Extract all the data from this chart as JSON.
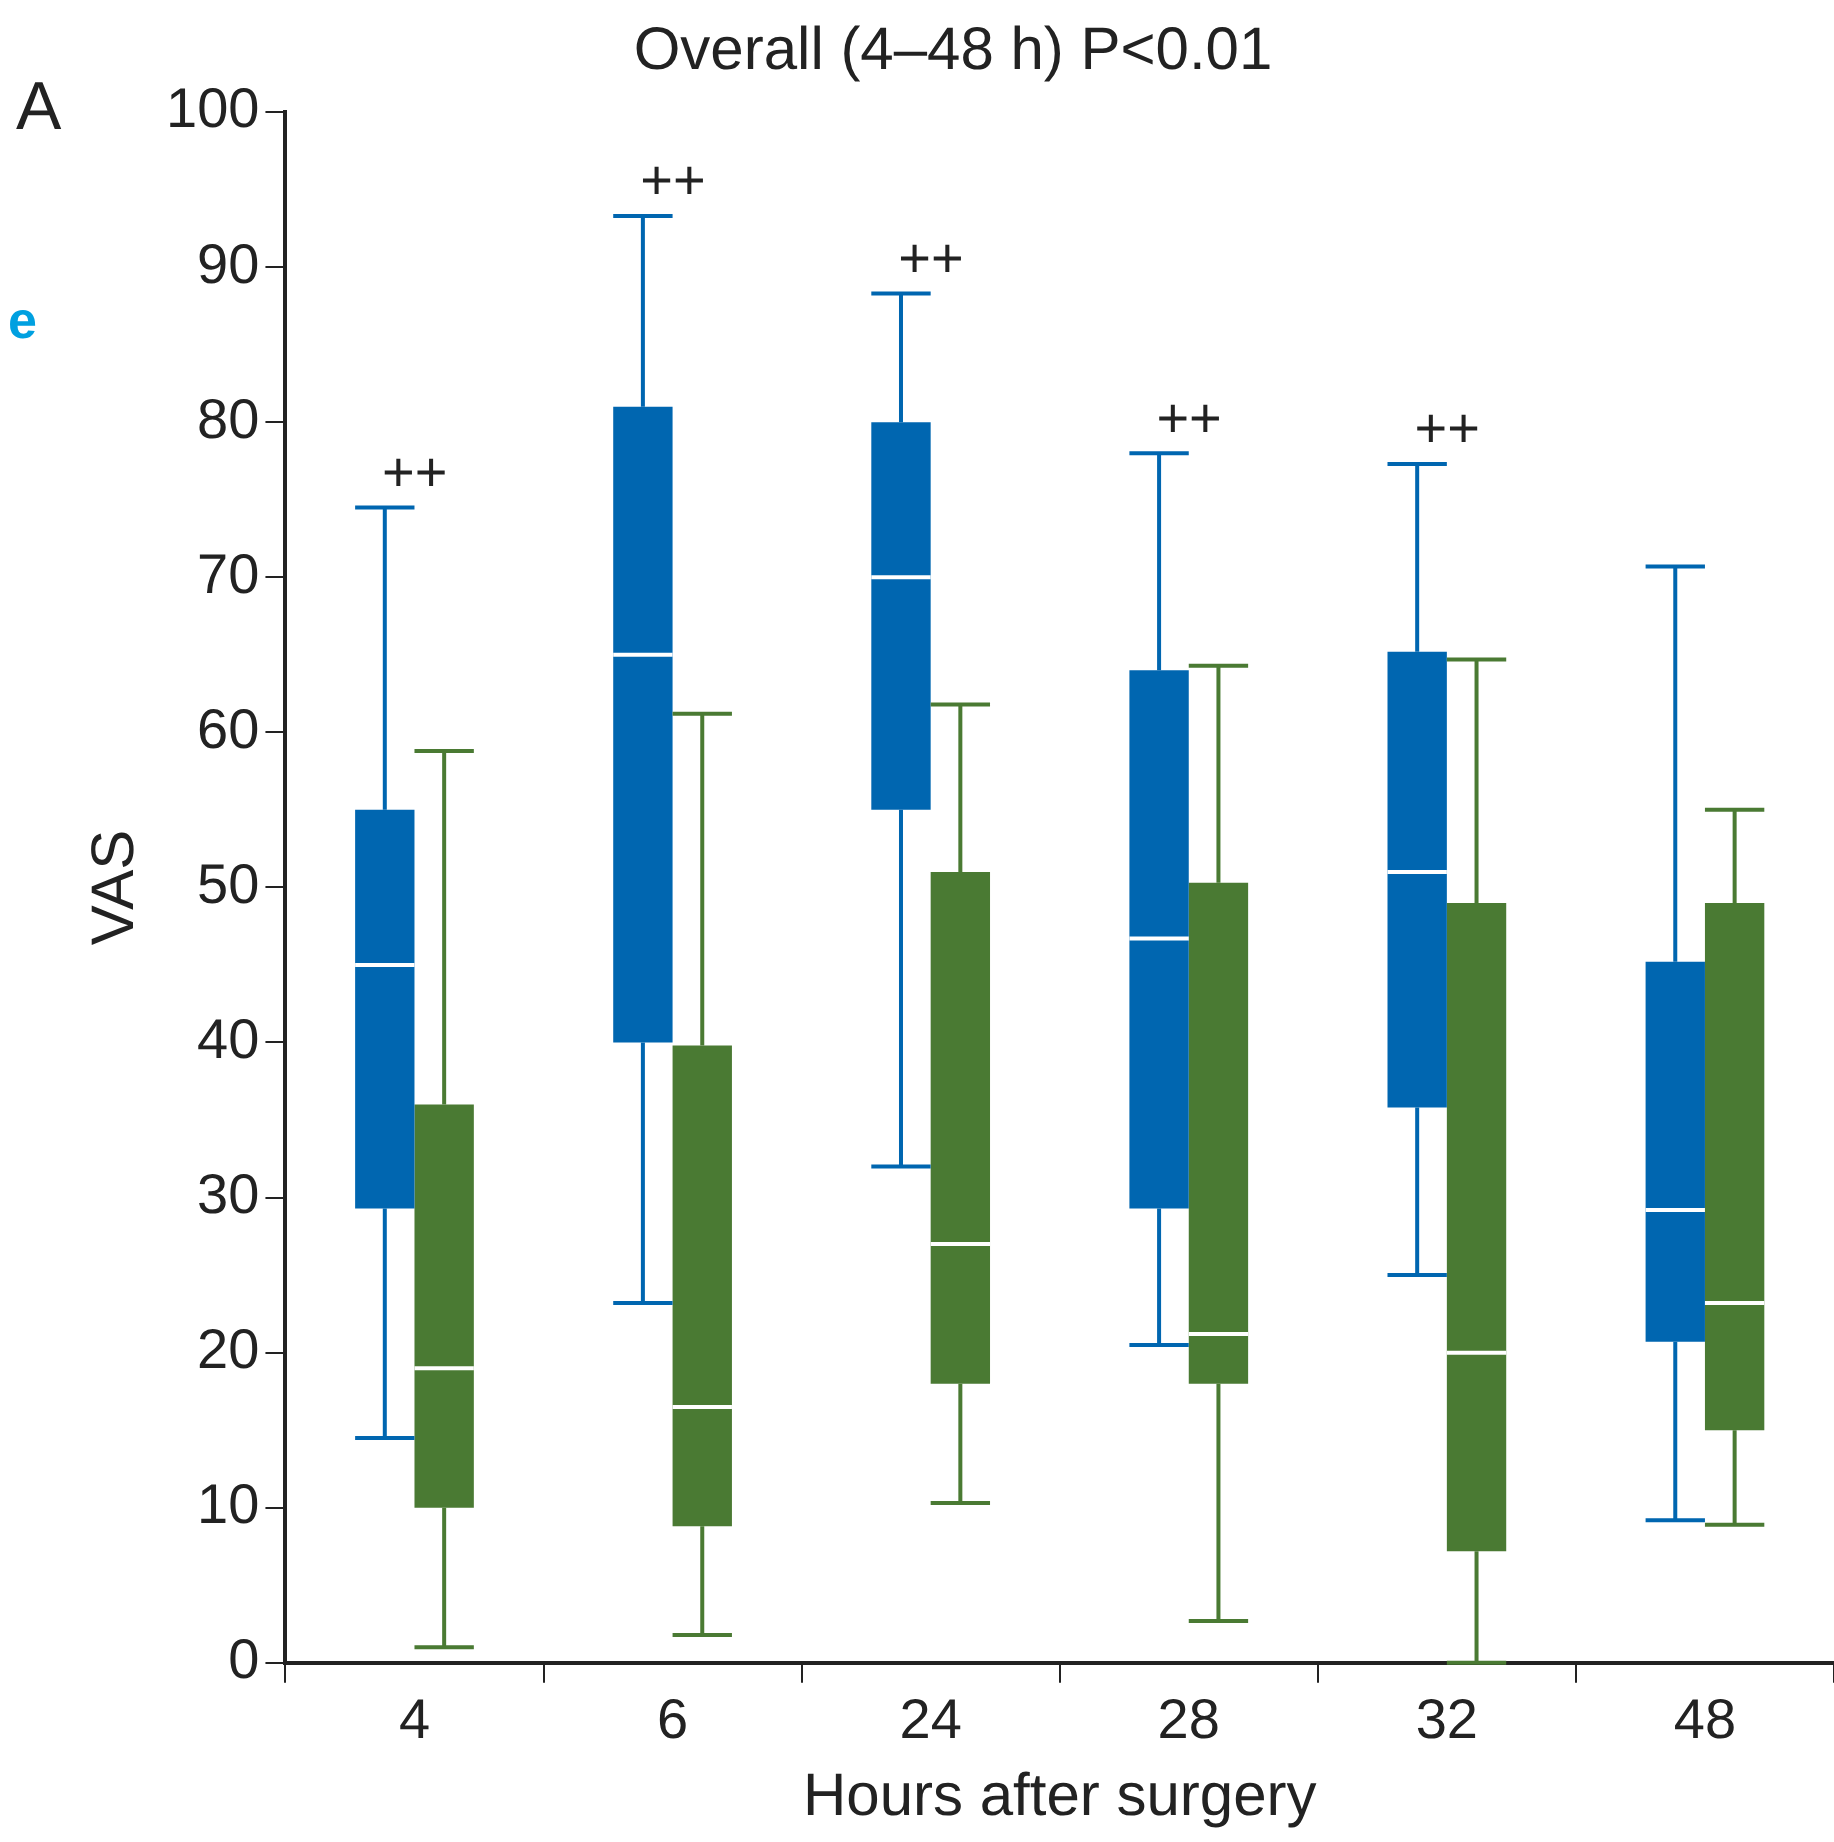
{
  "chart_data": {
    "type": "box",
    "title": "Overall (4–48 h) P<0.01",
    "xlabel": "Hours after surgery",
    "ylabel": "VAS",
    "categories": [
      "4",
      "6",
      "24",
      "28",
      "32",
      "48"
    ],
    "ylim": [
      0,
      100
    ],
    "yticks": [
      0,
      10,
      20,
      30,
      40,
      50,
      60,
      70,
      80,
      90,
      100
    ],
    "grid": false,
    "legend": false,
    "series": [
      {
        "color": "#0066b0",
        "boxes": [
          {
            "low": 14.5,
            "q1": 29.3,
            "median": 45,
            "q3": 55,
            "high": 74.5
          },
          {
            "low": 23.2,
            "q1": 40,
            "median": 65,
            "q3": 81,
            "high": 93.3
          },
          {
            "low": 32,
            "q1": 55,
            "median": 70,
            "q3": 80,
            "high": 88.3
          },
          {
            "low": 20.5,
            "q1": 29.3,
            "median": 46.7,
            "q3": 64,
            "high": 78
          },
          {
            "low": 25,
            "q1": 35.8,
            "median": 51,
            "q3": 65.2,
            "high": 77.3
          },
          {
            "low": 9.2,
            "q1": 20.7,
            "median": 29.2,
            "q3": 45.2,
            "high": 70.7
          }
        ]
      },
      {
        "color": "#4a7a33",
        "boxes": [
          {
            "low": 1,
            "q1": 10,
            "median": 19,
            "q3": 36,
            "high": 58.8
          },
          {
            "low": 1.8,
            "q1": 8.8,
            "median": 16.5,
            "q3": 39.8,
            "high": 61.2
          },
          {
            "low": 10.3,
            "q1": 18,
            "median": 27,
            "q3": 51,
            "high": 61.8
          },
          {
            "low": 2.7,
            "q1": 18,
            "median": 21.2,
            "q3": 50.3,
            "high": 64.3
          },
          {
            "low": 0,
            "q1": 7.2,
            "median": 20,
            "q3": 49,
            "high": 64.7
          },
          {
            "low": 8.9,
            "q1": 15,
            "median": 23.2,
            "q3": 49,
            "high": 55
          }
        ]
      }
    ],
    "annotations": [
      "A",
      "e",
      {
        "text": "++",
        "x": "4",
        "y": 74.5
      },
      {
        "text": "++",
        "x": "6",
        "y": 93.3
      },
      {
        "text": "++",
        "x": "24",
        "y": 88.3
      },
      {
        "text": "++",
        "x": "28",
        "y": 78
      },
      {
        "text": "++",
        "x": "32",
        "y": 77.3
      }
    ]
  }
}
